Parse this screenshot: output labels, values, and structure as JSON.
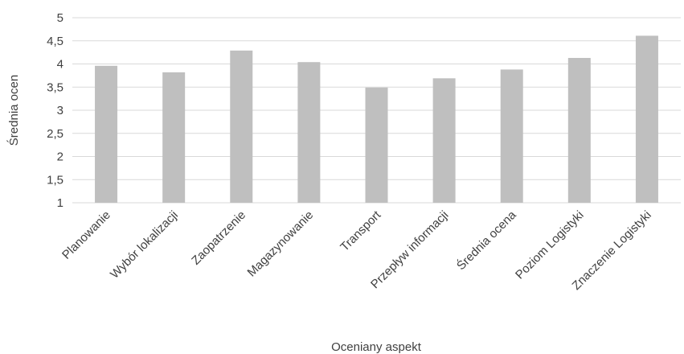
{
  "chart_data": {
    "type": "bar",
    "categories": [
      "Planowanie",
      "Wybór lokalizacji",
      "Zaopatrzenie",
      "Magazynowanie",
      "Transport",
      "Przepływ informacji",
      "Średnia ocena",
      "Poziom Logistyki",
      "Znaczenie Logistyki"
    ],
    "values": [
      3.96,
      3.82,
      4.29,
      4.04,
      3.49,
      3.69,
      3.88,
      4.13,
      4.61
    ],
    "xlabel": "Oceniany aspekt",
    "ylabel": "Średnia ocen",
    "ylim": [
      1,
      5
    ],
    "yticks": [
      "1",
      "1,5",
      "2",
      "2,5",
      "3",
      "3,5",
      "4",
      "4,5",
      "5"
    ],
    "grid": true,
    "bar_color": "#bfbfbf",
    "grid_color": "#d9d9d9"
  }
}
